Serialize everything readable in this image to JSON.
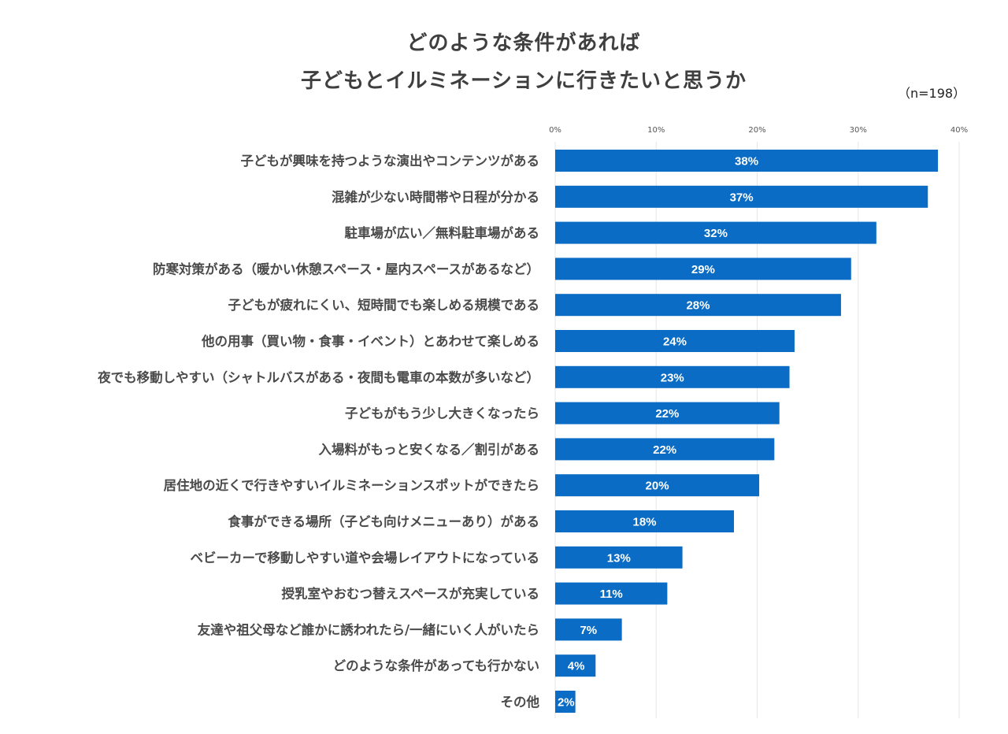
{
  "chart_data": {
    "type": "bar",
    "orientation": "horizontal",
    "title": "どのような条件があれば 子どもとイルミネーションに行きたいと思うか",
    "title_lines": [
      "どのような条件があれば",
      "子どもとイルミネーションに行きたいと思うか"
    ],
    "sample_note": "（n=198）",
    "categories": [
      "子どもが興味を持つような演出やコンテンツがある",
      "混雑が少ない時間帯や日程が分かる",
      "駐車場が広い／無料駐車場がある",
      "防寒対策がある（暖かい休憩スペース・屋内スペースがあるなど）",
      "子どもが疲れにくい、短時間でも楽しめる規模である",
      "他の用事（買い物・食事・イベント）とあわせて楽しめる",
      "夜でも移動しやすい（シャトルバスがある・夜間も電車の本数が多いなど）",
      "子どもがもう少し大きくなったら",
      "入場料がもっと安くなる／割引がある",
      "居住地の近くで行きやすいイルミネーションスポットができたら",
      "食事ができる場所（子ども向けメニューあり）がある",
      "ベビーカーで移動しやすい道や会場レイアウトになっている",
      "授乳室やおむつ替えスペースが充実している",
      "友達や祖父母など誰かに誘われたら/一緒にいく人がいたら",
      "どのような条件があっても行かない",
      "その他"
    ],
    "values": [
      37.9,
      36.9,
      31.8,
      29.3,
      28.3,
      23.7,
      23.2,
      22.2,
      21.7,
      20.2,
      17.7,
      12.6,
      11.1,
      6.6,
      4.0,
      2.0
    ],
    "data_labels": [
      "38%",
      "37%",
      "32%",
      "29%",
      "28%",
      "24%",
      "23%",
      "22%",
      "22%",
      "20%",
      "18%",
      "13%",
      "11%",
      "7%",
      "4%",
      "2%"
    ],
    "xlim": [
      0,
      40
    ],
    "x_ticks": [
      "0%",
      "10%",
      "20%",
      "30%",
      "40%"
    ],
    "x_tick_values": [
      0,
      10,
      20,
      30,
      40
    ],
    "x_axis_position": "top",
    "grid": true,
    "legend": "none",
    "bar_color": "#0a6cc4",
    "grid_color": "#e6e6e6",
    "xlabel": "",
    "ylabel": ""
  }
}
